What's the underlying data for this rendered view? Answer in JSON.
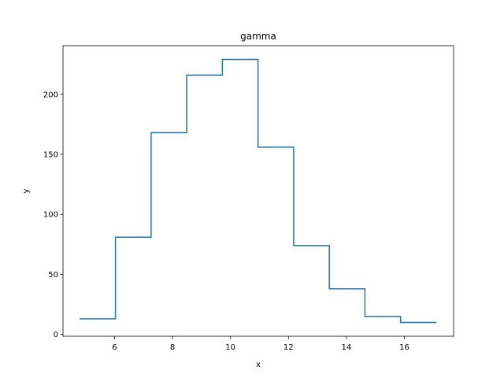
{
  "chart_data": {
    "type": "line",
    "step": "post",
    "title": "gamma",
    "xlabel": "x",
    "ylabel": "y",
    "xlim": [
      4.22,
      17.7
    ],
    "ylim": [
      -1.5,
      240.5
    ],
    "xticks": [
      6,
      8,
      10,
      12,
      14,
      16
    ],
    "yticks": [
      0,
      50,
      100,
      150,
      200
    ],
    "line_color": "#1f77b4",
    "x": [
      4.8,
      6.03,
      7.26,
      8.49,
      9.72,
      10.95,
      12.18,
      13.41,
      14.64,
      15.87,
      17.1
    ],
    "y": [
      13,
      81,
      168,
      216,
      229,
      156,
      74,
      38,
      15,
      10,
      10
    ]
  }
}
